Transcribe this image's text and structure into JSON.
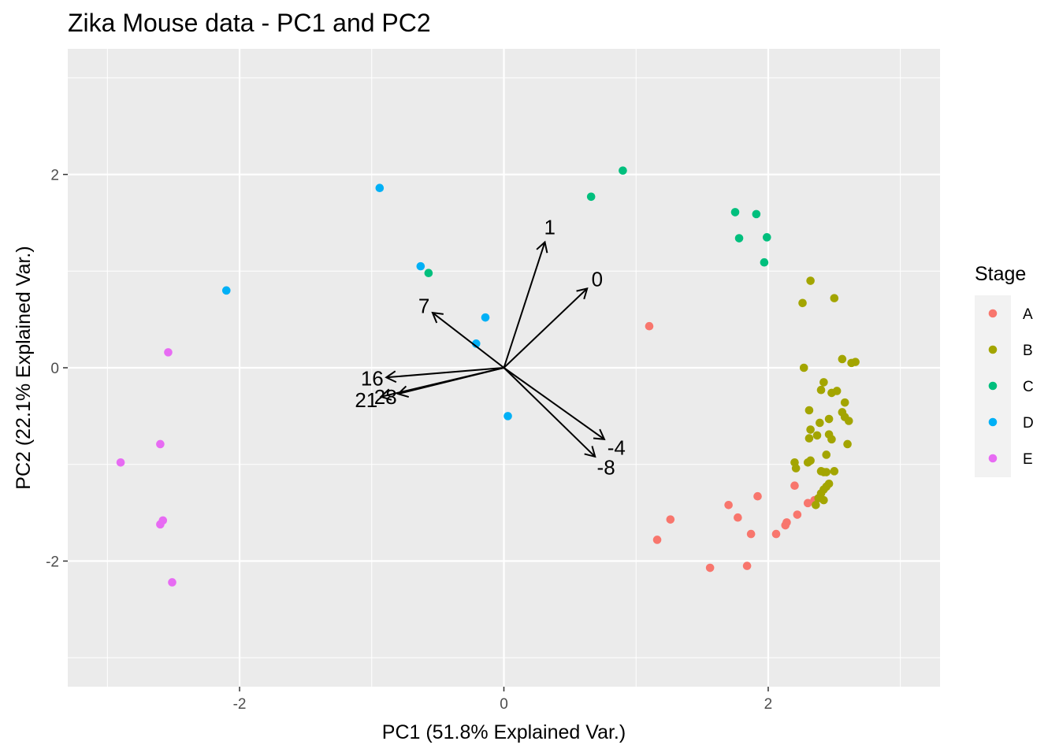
{
  "chart_data": {
    "type": "scatter",
    "title": "Zika Mouse data - PC1 and PC2",
    "xlabel": "PC1 (51.8% Explained Var.)",
    "ylabel": "PC2 (22.1% Explained Var.)",
    "xlim": [
      -3.3,
      3.3
    ],
    "ylim": [
      -3.3,
      3.3
    ],
    "xticks": [
      -2,
      0,
      2
    ],
    "yticks": [
      -2,
      0,
      2
    ],
    "grid": true,
    "legend": {
      "title": "Stage",
      "placement": "right"
    },
    "series": [
      {
        "name": "A",
        "color": "#F8766D",
        "points": [
          [
            1.1,
            0.43
          ],
          [
            2.2,
            -1.22
          ],
          [
            1.92,
            -1.33
          ],
          [
            2.35,
            -1.37
          ],
          [
            2.3,
            -1.4
          ],
          [
            1.7,
            -1.42
          ],
          [
            2.22,
            -1.52
          ],
          [
            1.77,
            -1.55
          ],
          [
            1.26,
            -1.57
          ],
          [
            2.14,
            -1.6
          ],
          [
            2.13,
            -1.63
          ],
          [
            2.06,
            -1.72
          ],
          [
            1.87,
            -1.72
          ],
          [
            1.16,
            -1.78
          ],
          [
            1.56,
            -2.07
          ],
          [
            1.84,
            -2.05
          ]
        ]
      },
      {
        "name": "B",
        "color": "#A3A500",
        "points": [
          [
            2.32,
            0.9
          ],
          [
            2.5,
            0.72
          ],
          [
            2.26,
            0.67
          ],
          [
            2.56,
            0.09
          ],
          [
            2.66,
            0.06
          ],
          [
            2.63,
            0.05
          ],
          [
            2.27,
            0.0
          ],
          [
            2.42,
            -0.15
          ],
          [
            2.4,
            -0.23
          ],
          [
            2.52,
            -0.24
          ],
          [
            2.48,
            -0.26
          ],
          [
            2.58,
            -0.36
          ],
          [
            2.31,
            -0.44
          ],
          [
            2.56,
            -0.46
          ],
          [
            2.58,
            -0.51
          ],
          [
            2.46,
            -0.53
          ],
          [
            2.61,
            -0.55
          ],
          [
            2.39,
            -0.57
          ],
          [
            2.32,
            -0.64
          ],
          [
            2.46,
            -0.69
          ],
          [
            2.37,
            -0.7
          ],
          [
            2.31,
            -0.73
          ],
          [
            2.48,
            -0.74
          ],
          [
            2.6,
            -0.79
          ],
          [
            2.44,
            -0.9
          ],
          [
            2.3,
            -0.98
          ],
          [
            2.32,
            -0.96
          ],
          [
            2.2,
            -0.98
          ],
          [
            2.21,
            -1.04
          ],
          [
            2.4,
            -1.07
          ],
          [
            2.44,
            -1.08
          ],
          [
            2.42,
            -1.08
          ],
          [
            2.5,
            -1.07
          ],
          [
            2.46,
            -1.2
          ],
          [
            2.44,
            -1.23
          ],
          [
            2.42,
            -1.26
          ],
          [
            2.4,
            -1.3
          ],
          [
            2.38,
            -1.35
          ],
          [
            2.42,
            -1.37
          ],
          [
            2.36,
            -1.42
          ]
        ]
      },
      {
        "name": "C",
        "color": "#00BF7D",
        "points": [
          [
            0.9,
            2.04
          ],
          [
            0.66,
            1.77
          ],
          [
            1.75,
            1.61
          ],
          [
            1.91,
            1.59
          ],
          [
            1.78,
            1.34
          ],
          [
            1.99,
            1.35
          ],
          [
            1.97,
            1.09
          ],
          [
            -0.57,
            0.98
          ]
        ]
      },
      {
        "name": "D",
        "color": "#00B0F6",
        "points": [
          [
            -0.94,
            1.86
          ],
          [
            -2.1,
            0.8
          ],
          [
            -0.63,
            1.05
          ],
          [
            -0.14,
            0.52
          ],
          [
            -0.21,
            0.25
          ],
          [
            0.03,
            -0.5
          ]
        ]
      },
      {
        "name": "E",
        "color": "#E76BF3",
        "points": [
          [
            -2.54,
            0.16
          ],
          [
            -2.6,
            -0.79
          ],
          [
            -2.9,
            -0.98
          ],
          [
            -2.58,
            -1.58
          ],
          [
            -2.6,
            -1.62
          ],
          [
            -2.51,
            -2.22
          ]
        ]
      }
    ],
    "loadings": [
      {
        "label": "1",
        "x": 0.31,
        "y": 1.3
      },
      {
        "label": "0",
        "x": 0.63,
        "y": 0.82
      },
      {
        "label": "7",
        "x": -0.54,
        "y": 0.57
      },
      {
        "label": "16",
        "x": -0.89,
        "y": -0.1
      },
      {
        "label": "21",
        "x": -0.93,
        "y": -0.3
      },
      {
        "label": "28",
        "x": -0.8,
        "y": -0.27
      },
      {
        "label": "-4",
        "x": 0.76,
        "y": -0.74
      },
      {
        "label": "-8",
        "x": 0.69,
        "y": -0.92
      }
    ]
  }
}
